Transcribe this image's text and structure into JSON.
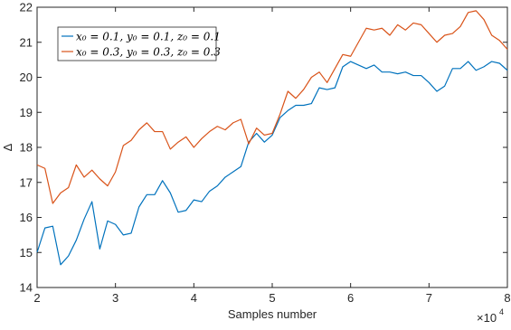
{
  "chart_data": {
    "type": "line",
    "title": "",
    "xlabel": "Samples number",
    "ylabel": "Δ",
    "x_multiplier_label": "×10",
    "x_multiplier_exponent": "4",
    "xlim": [
      2,
      8
    ],
    "ylim": [
      14,
      22
    ],
    "x_ticks": [
      2,
      3,
      4,
      5,
      6,
      7,
      8
    ],
    "y_ticks": [
      14,
      15,
      16,
      17,
      18,
      19,
      20,
      21,
      22
    ],
    "grid": false,
    "legend_position": "top-left",
    "x": [
      2.0,
      2.1,
      2.2,
      2.3,
      2.4,
      2.5,
      2.6,
      2.7,
      2.8,
      2.9,
      3.0,
      3.1,
      3.2,
      3.3,
      3.4,
      3.5,
      3.6,
      3.7,
      3.8,
      3.9,
      4.0,
      4.1,
      4.2,
      4.3,
      4.4,
      4.5,
      4.6,
      4.7,
      4.8,
      4.9,
      5.0,
      5.1,
      5.2,
      5.3,
      5.4,
      5.5,
      5.6,
      5.7,
      5.8,
      5.9,
      6.0,
      6.1,
      6.2,
      6.3,
      6.4,
      6.5,
      6.6,
      6.7,
      6.8,
      6.9,
      7.0,
      7.1,
      7.2,
      7.3,
      7.4,
      7.5,
      7.6,
      7.7,
      7.8,
      7.9,
      8.0
    ],
    "series": [
      {
        "name": "x_0 = 0.1, y_0 = 0.1, z_0 = 0.1",
        "color": "#0072BD",
        "values": [
          15.0,
          15.7,
          15.75,
          14.65,
          14.9,
          15.35,
          15.95,
          16.45,
          15.1,
          15.9,
          15.8,
          15.5,
          15.55,
          16.3,
          16.65,
          16.65,
          17.05,
          16.7,
          16.15,
          16.2,
          16.5,
          16.45,
          16.75,
          16.9,
          17.15,
          17.3,
          17.45,
          18.15,
          18.4,
          18.15,
          18.35,
          18.85,
          19.05,
          19.2,
          19.2,
          19.25,
          19.7,
          19.65,
          19.7,
          20.3,
          20.45,
          20.35,
          20.25,
          20.35,
          20.15,
          20.15,
          20.1,
          20.15,
          20.05,
          20.05,
          19.85,
          19.6,
          19.75,
          20.25,
          20.25,
          20.45,
          20.2,
          20.3,
          20.45,
          20.4,
          20.2
        ]
      },
      {
        "name": "x_0 = 0.3, y_0 = 0.3, z_0 = 0.3",
        "color": "#D95319",
        "values": [
          17.5,
          17.4,
          16.4,
          16.7,
          16.85,
          17.5,
          17.15,
          17.35,
          17.1,
          16.9,
          17.3,
          18.05,
          18.2,
          18.5,
          18.7,
          18.45,
          18.45,
          17.95,
          18.15,
          18.3,
          18.0,
          18.25,
          18.45,
          18.6,
          18.5,
          18.7,
          18.8,
          18.1,
          18.55,
          18.35,
          18.4,
          18.95,
          19.6,
          19.4,
          19.65,
          20.0,
          20.15,
          19.85,
          20.25,
          20.65,
          20.6,
          21.0,
          21.4,
          21.35,
          21.4,
          21.2,
          21.5,
          21.35,
          21.55,
          21.5,
          21.25,
          21.0,
          21.2,
          21.25,
          21.45,
          21.85,
          21.9,
          21.65,
          21.2,
          21.05,
          20.8
        ]
      }
    ],
    "legend": [
      {
        "label": "x₀ = 0.1, y₀ = 0.1, z₀ = 0.1"
      },
      {
        "label": "x₀ = 0.3, y₀ = 0.3, z₀ = 0.3"
      }
    ]
  }
}
